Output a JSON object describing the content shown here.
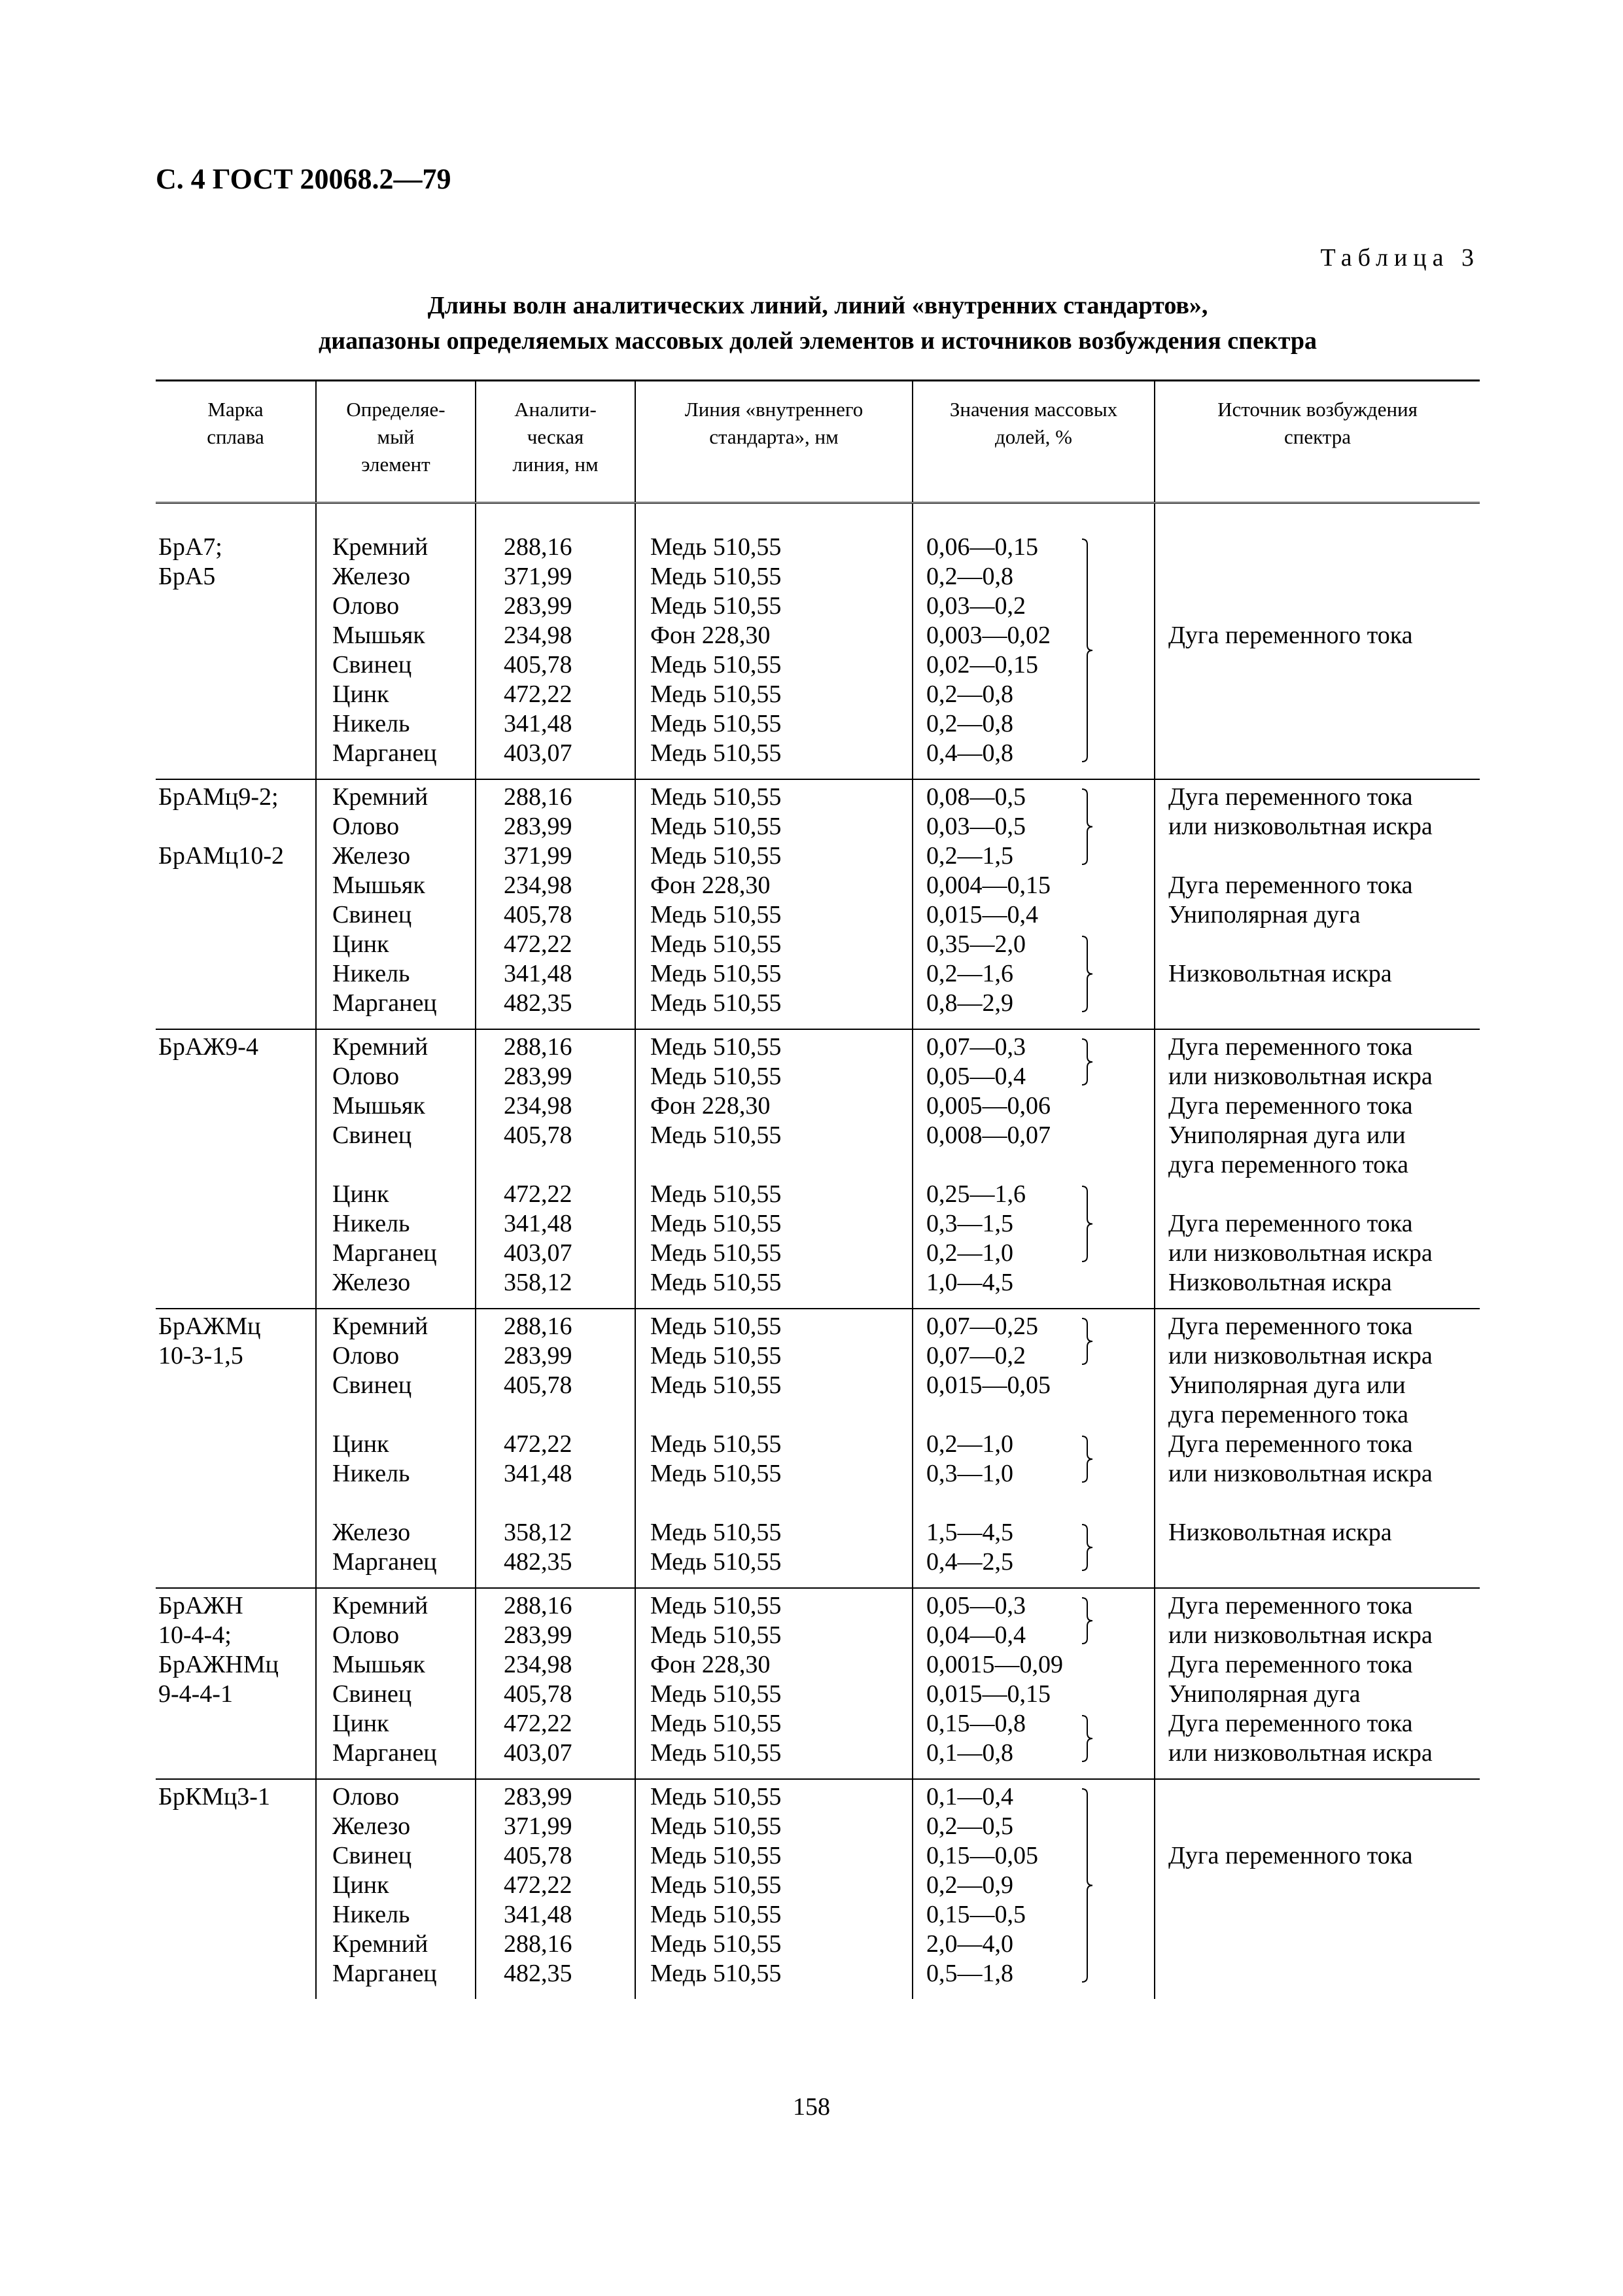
{
  "page_header": "С. 4 ГОСТ 20068.2—79",
  "table_label": "Таблица 3",
  "caption": [
    "Длины волн аналитических линий, линий «внутренних стандартов»,",
    "диапазоны определяемых массовых долей элементов и источников возбуждения спектра"
  ],
  "columns": [
    "Марка\nсплава",
    "Определяе-\nмый\nэлемент",
    "Аналити-\nческая\nлиния, нм",
    "Линия «внутреннего\nстандарта», нм",
    "Значения массовых\nдолей, %",
    "Источник возбуждения\nспектра"
  ],
  "groups": [
    {
      "alloy": [
        "БрА7;",
        "БрА5"
      ],
      "rows": [
        [
          "Кремний",
          "288,16",
          "Медь 510,55",
          "0,06—0,15"
        ],
        [
          "Железо",
          "371,99",
          "Медь 510,55",
          "0,2—0,8"
        ],
        [
          "Олово",
          "283,99",
          "Медь 510,55",
          "0,03—0,2"
        ],
        [
          "Мышьяк",
          "234,98",
          "Фон 228,30",
          "0,003—0,02"
        ],
        [
          "Свинец",
          "405,78",
          "Медь 510,55",
          "0,02—0,15"
        ],
        [
          "Цинк",
          "472,22",
          "Медь 510,55",
          "0,2—0,8"
        ],
        [
          "Никель",
          "341,48",
          "Медь 510,55",
          "0,2—0,8"
        ],
        [
          "Марганец",
          "403,07",
          "Медь 510,55",
          "0,4—0,8"
        ]
      ],
      "sources": [
        {
          "line": 3,
          "text": "Дуга переменного тока"
        }
      ],
      "braces": [
        {
          "from": 0,
          "to": 7
        }
      ]
    },
    {
      "alloy": [
        "БрАМц9-2;",
        "",
        "БрАМц10-2"
      ],
      "rows": [
        [
          "Кремний",
          "288,16",
          "Медь 510,55",
          "0,08—0,5"
        ],
        [
          "Олово",
          "283,99",
          "Медь 510,55",
          "0,03—0,5"
        ],
        [
          "Железо",
          "371,99",
          "Медь 510,55",
          "0,2—1,5"
        ],
        [
          "Мышьяк",
          "234,98",
          "Фон 228,30",
          "0,004—0,15"
        ],
        [
          "Свинец",
          "405,78",
          "Медь 510,55",
          "0,015—0,4"
        ],
        [
          "Цинк",
          "472,22",
          "Медь 510,55",
          "0,35—2,0"
        ],
        [
          "Никель",
          "341,48",
          "Медь 510,55",
          "0,2—1,6"
        ],
        [
          "Марганец",
          "482,35",
          "Медь 510,55",
          "0,8—2,9"
        ]
      ],
      "sources": [
        {
          "line": 0,
          "text": "Дуга переменного тока"
        },
        {
          "line": 1,
          "text": "или низковольтная искра"
        },
        {
          "line": 3,
          "text": "Дуга переменного тока"
        },
        {
          "line": 4,
          "text": "Униполярная дуга"
        },
        {
          "line": 6,
          "text": "Низковольтная искра"
        }
      ],
      "braces": [
        {
          "from": 0,
          "to": 2
        },
        {
          "from": 5,
          "to": 7
        }
      ]
    },
    {
      "alloy": [
        "БрАЖ9-4"
      ],
      "rows": [
        [
          "Кремний",
          "288,16",
          "Медь 510,55",
          "0,07—0,3"
        ],
        [
          "Олово",
          "283,99",
          "Медь 510,55",
          "0,05—0,4"
        ],
        [
          "Мышьяк",
          "234,98",
          "Фон 228,30",
          "0,005—0,06"
        ],
        [
          "Свинец",
          "405,78",
          "Медь 510,55",
          "0,008—0,07"
        ],
        [
          "",
          "",
          "",
          ""
        ],
        [
          "Цинк",
          "472,22",
          "Медь 510,55",
          "0,25—1,6"
        ],
        [
          "Никель",
          "341,48",
          "Медь 510,55",
          "0,3—1,5"
        ],
        [
          "Марганец",
          "403,07",
          "Медь 510,55",
          "0,2—1,0"
        ],
        [
          "Железо",
          "358,12",
          "Медь 510,55",
          "1,0—4,5"
        ]
      ],
      "sources": [
        {
          "line": 0,
          "text": "Дуга переменного тока"
        },
        {
          "line": 1,
          "text": "или низковольтная искра"
        },
        {
          "line": 2,
          "text": "Дуга переменного тока"
        },
        {
          "line": 3,
          "text": "Униполярная дуга или"
        },
        {
          "line": 4,
          "text": "дуга переменного тока"
        },
        {
          "line": 6,
          "text": "Дуга переменного тока"
        },
        {
          "line": 7,
          "text": "или низковольтная искра"
        },
        {
          "line": 8,
          "text": "Низковольтная искра"
        }
      ],
      "braces": [
        {
          "from": 0,
          "to": 1
        },
        {
          "from": 5,
          "to": 7
        }
      ]
    },
    {
      "alloy": [
        "БрАЖМц",
        "10-3-1,5"
      ],
      "rows": [
        [
          "Кремний",
          "288,16",
          "Медь 510,55",
          "0,07—0,25"
        ],
        [
          "Олово",
          "283,99",
          "Медь 510,55",
          "0,07—0,2"
        ],
        [
          "Свинец",
          "405,78",
          "Медь 510,55",
          "0,015—0,05"
        ],
        [
          "",
          "",
          "",
          ""
        ],
        [
          "Цинк",
          "472,22",
          "Медь 510,55",
          "0,2—1,0"
        ],
        [
          "Никель",
          "341,48",
          "Медь 510,55",
          "0,3—1,0"
        ],
        [
          "",
          "",
          "",
          ""
        ],
        [
          "Железо",
          "358,12",
          "Медь 510,55",
          "1,5—4,5"
        ],
        [
          "Марганец",
          "482,35",
          "Медь 510,55",
          "0,4—2,5"
        ]
      ],
      "sources": [
        {
          "line": 0,
          "text": "Дуга переменного тока"
        },
        {
          "line": 1,
          "text": "или низковольтная искра"
        },
        {
          "line": 2,
          "text": "Униполярная дуга или"
        },
        {
          "line": 3,
          "text": "дуга переменного тока"
        },
        {
          "line": 4,
          "text": "Дуга переменного тока"
        },
        {
          "line": 5,
          "text": "или низковольтная искра"
        },
        {
          "line": 7,
          "text": "Низковольтная искра"
        }
      ],
      "braces": [
        {
          "from": 0,
          "to": 1
        },
        {
          "from": 4,
          "to": 5
        },
        {
          "from": 7,
          "to": 8
        }
      ]
    },
    {
      "alloy": [
        "БрАЖН",
        "10-4-4;",
        "БрАЖНМц",
        "9-4-4-1"
      ],
      "rows": [
        [
          "Кремний",
          "288,16",
          "Медь 510,55",
          "0,05—0,3"
        ],
        [
          "Олово",
          "283,99",
          "Медь 510,55",
          "0,04—0,4"
        ],
        [
          "Мышьяк",
          "234,98",
          "Фон 228,30",
          "0,0015—0,09"
        ],
        [
          "Свинец",
          "405,78",
          "Медь 510,55",
          "0,015—0,15"
        ],
        [
          "Цинк",
          "472,22",
          "Медь 510,55",
          "0,15—0,8"
        ],
        [
          "Марганец",
          "403,07",
          "Медь 510,55",
          "0,1—0,8"
        ]
      ],
      "sources": [
        {
          "line": 0,
          "text": "Дуга переменного тока"
        },
        {
          "line": 1,
          "text": "или низковольтная искра"
        },
        {
          "line": 2,
          "text": "Дуга переменного тока"
        },
        {
          "line": 3,
          "text": "Униполярная дуга"
        },
        {
          "line": 4,
          "text": "Дуга переменного тока"
        },
        {
          "line": 5,
          "text": "или низковольтная искра"
        }
      ],
      "braces": [
        {
          "from": 0,
          "to": 1
        },
        {
          "from": 4,
          "to": 5
        }
      ]
    },
    {
      "alloy": [
        "БрКМц3-1"
      ],
      "rows": [
        [
          "Олово",
          "283,99",
          "Медь 510,55",
          "0,1—0,4"
        ],
        [
          "Железо",
          "371,99",
          "Медь 510,55",
          "0,2—0,5"
        ],
        [
          "Свинец",
          "405,78",
          "Медь 510,55",
          "0,15—0,05"
        ],
        [
          "Цинк",
          "472,22",
          "Медь 510,55",
          "0,2—0,9"
        ],
        [
          "Никель",
          "341,48",
          "Медь 510,55",
          "0,15—0,5"
        ],
        [
          "Кремний",
          "288,16",
          "Медь 510,55",
          "2,0—4,0"
        ],
        [
          "Марганец",
          "482,35",
          "Медь 510,55",
          "0,5—1,8"
        ]
      ],
      "sources": [
        {
          "line": 2,
          "text": "Дуга переменного тока"
        }
      ],
      "braces": [
        {
          "from": 0,
          "to": 6
        }
      ]
    }
  ],
  "page_number": "158"
}
